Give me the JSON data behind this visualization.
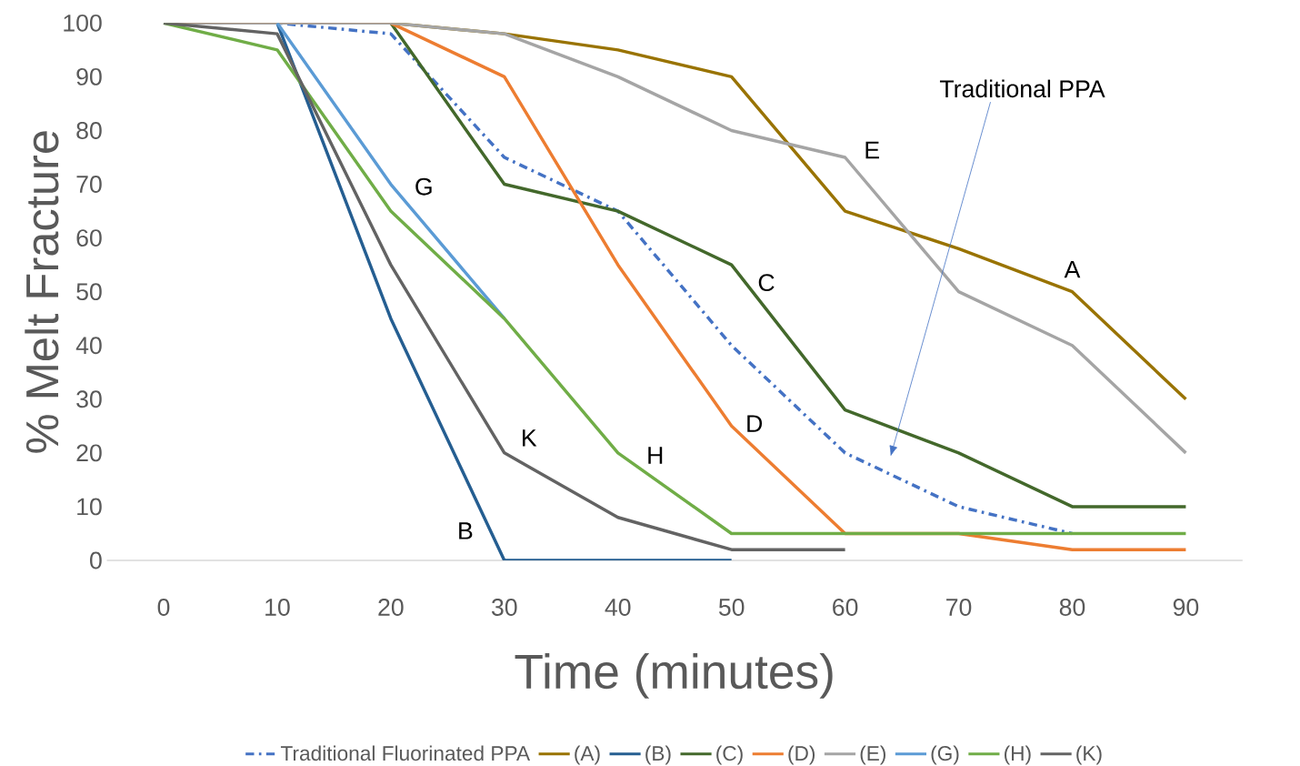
{
  "chart_data": {
    "type": "line",
    "xlabel": "Time (minutes)",
    "ylabel": "% Melt Fracture",
    "categories": [
      "0",
      "10",
      "20",
      "30",
      "40",
      "50",
      "60",
      "70",
      "80",
      "90"
    ],
    "ylim": [
      0,
      100
    ],
    "yticks": [
      0,
      10,
      20,
      30,
      40,
      50,
      60,
      70,
      80,
      90,
      100
    ],
    "grid": false,
    "legend": "bottom",
    "marker": "none",
    "series": [
      {
        "name": "Traditional Fluorinated PPA",
        "color": "#4472c4",
        "line_style": "dashdot",
        "values": [
          100,
          100,
          98,
          75,
          65,
          40,
          20,
          10,
          5,
          null
        ]
      },
      {
        "name": "(A)",
        "color": "#997300",
        "values": [
          null,
          null,
          100,
          98,
          95,
          90,
          65,
          58,
          50,
          30
        ]
      },
      {
        "name": "(B)",
        "color": "#255e91",
        "values": [
          100,
          100,
          45,
          0,
          0,
          0,
          null,
          null,
          null,
          null
        ]
      },
      {
        "name": "(C)",
        "color": "#43682b",
        "values": [
          100,
          100,
          100,
          70,
          65,
          55,
          28,
          20,
          10,
          10
        ]
      },
      {
        "name": "(D)",
        "color": "#ed7d31",
        "values": [
          100,
          100,
          100,
          90,
          55,
          25,
          5,
          5,
          2,
          2
        ]
      },
      {
        "name": "(E)",
        "color": "#a5a5a5",
        "values": [
          100,
          100,
          100,
          98,
          90,
          80,
          75,
          50,
          40,
          20
        ]
      },
      {
        "name": "(G)",
        "color": "#5b9bd5",
        "values": [
          null,
          100,
          70,
          45,
          null,
          null,
          null,
          null,
          null,
          null
        ]
      },
      {
        "name": "(H)",
        "color": "#70ad47",
        "values": [
          100,
          95,
          65,
          45,
          20,
          5,
          5,
          5,
          5,
          5
        ]
      },
      {
        "name": "(K)",
        "color": "#636363",
        "values": [
          100,
          98,
          55,
          20,
          8,
          2,
          2,
          null,
          null,
          null
        ]
      }
    ],
    "annotations": [
      "Traditional PPA",
      {
        "text": "A",
        "x": "80",
        "y": 50
      },
      {
        "text": "B",
        "x": "30",
        "y": 0
      },
      {
        "text": "C",
        "x": "50",
        "y": 55
      },
      {
        "text": "D",
        "x": "50",
        "y": 25
      },
      {
        "text": "E",
        "x": "60",
        "y": 75
      },
      {
        "text": "G",
        "x": "20",
        "y": 70
      },
      {
        "text": "H",
        "x": "40",
        "y": 20
      },
      {
        "text": "K",
        "x": "30",
        "y": 20
      }
    ]
  }
}
